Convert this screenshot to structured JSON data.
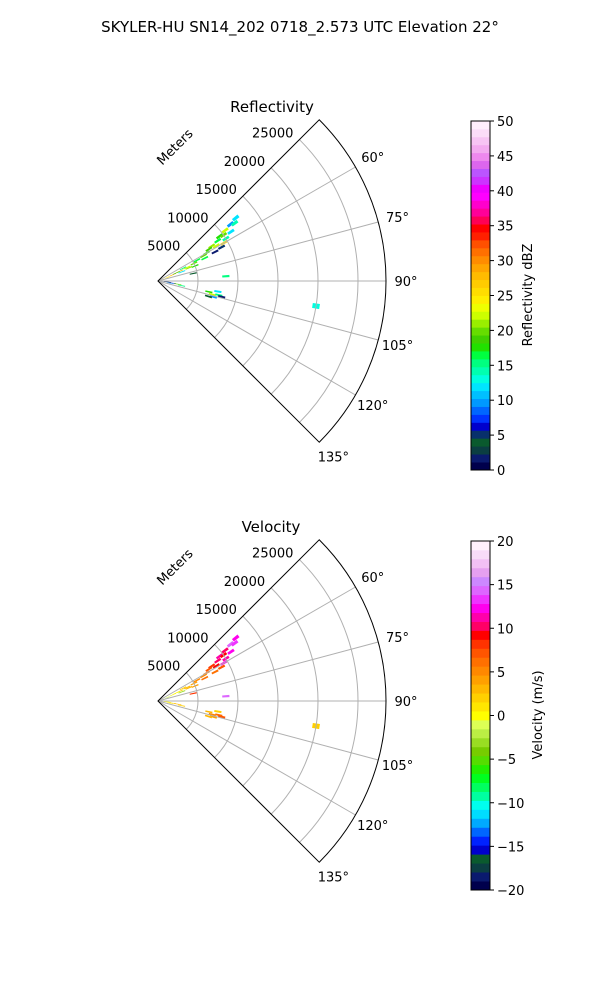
{
  "figure_title": "SKYLER-HU  SN14_202  0718_2.573 UTC Elevation 22°",
  "range_label": "Meters",
  "colors": {
    "grid": "#b0b0b0",
    "frame": "#000000",
    "background": "#ffffff"
  },
  "chart_data": [
    {
      "type": "polar-sector",
      "title": "Reflectivity",
      "theta_range_deg": [
        45,
        135
      ],
      "r_range_m": [
        0,
        28500
      ],
      "r_ticks": [
        5000,
        10000,
        15000,
        20000,
        25000
      ],
      "r_tick_labels": [
        "5000",
        "10000",
        "15000",
        "20000",
        "25000"
      ],
      "theta_ticks": [
        60,
        75,
        90,
        105,
        120,
        135
      ],
      "theta_tick_labels": [
        "60°",
        "75°",
        "90°",
        "105°",
        "120°",
        "135°"
      ],
      "grid": true,
      "colorbar": {
        "label": "Reflectivity dBZ",
        "min": 0,
        "max": 50,
        "ticks": [
          0,
          5,
          10,
          15,
          20,
          25,
          30,
          35,
          40,
          45,
          50
        ],
        "tick_labels": [
          "0",
          "5",
          "10",
          "15",
          "20",
          "25",
          "30",
          "35",
          "40",
          "45",
          "50"
        ],
        "colors": [
          "#00004c",
          "#0a1a6e",
          "#0b3e42",
          "#0a5a2e",
          "#08306b",
          "#0000cd",
          "#0033ff",
          "#0066ff",
          "#0099ff",
          "#00bfff",
          "#00e5ff",
          "#00ffe0",
          "#00ffb0",
          "#00ff80",
          "#00ff40",
          "#22e000",
          "#40d000",
          "#66dd00",
          "#99ee00",
          "#ccff00",
          "#eeff00",
          "#ffee00",
          "#ffdd00",
          "#ffcc00",
          "#ffbb00",
          "#ffa500",
          "#ff8c00",
          "#ff7000",
          "#ff5000",
          "#ff2000",
          "#ff0000",
          "#ff0055",
          "#ff0099",
          "#ff00cc",
          "#ff00ff",
          "#ee00ff",
          "#cc33ff",
          "#bb55ff",
          "#dd66ee",
          "#ee88ee",
          "#f3aaf0",
          "#f7c4f4",
          "#fbdcf8",
          "#ffeefc"
        ]
      },
      "gates": [
        {
          "az": 51,
          "r": 12500,
          "value": 12
        },
        {
          "az": 52,
          "r": 11500,
          "value": 10
        },
        {
          "az": 53,
          "r": 10500,
          "value": 22
        },
        {
          "az": 54,
          "r": 9500,
          "value": 18
        },
        {
          "az": 53,
          "r": 12000,
          "value": 14
        },
        {
          "az": 55,
          "r": 10000,
          "value": 20
        },
        {
          "az": 56,
          "r": 9000,
          "value": 16
        },
        {
          "az": 57,
          "r": 8000,
          "value": 21
        },
        {
          "az": 58,
          "r": 7500,
          "value": 19
        },
        {
          "az": 56,
          "r": 11000,
          "value": 12
        },
        {
          "az": 59,
          "r": 8500,
          "value": 22
        },
        {
          "az": 60,
          "r": 7000,
          "value": 18
        },
        {
          "az": 61,
          "r": 6500,
          "value": 20
        },
        {
          "az": 62,
          "r": 9000,
          "value": 5
        },
        {
          "az": 63,
          "r": 8000,
          "value": 2
        },
        {
          "az": 58,
          "r": 10000,
          "value": 14
        },
        {
          "az": 60,
          "r": 9500,
          "value": 25
        },
        {
          "az": 64,
          "r": 5000,
          "value": 20
        },
        {
          "az": 65,
          "r": 4000,
          "value": 22
        },
        {
          "az": 66,
          "r": 3000,
          "value": 28
        },
        {
          "az": 67,
          "r": 2000,
          "value": 30
        },
        {
          "az": 68,
          "r": 1500,
          "value": 26
        },
        {
          "az": 62,
          "r": 5500,
          "value": 17
        },
        {
          "az": 63,
          "r": 3500,
          "value": 15
        },
        {
          "az": 66,
          "r": 2500,
          "value": 19
        },
        {
          "az": 70,
          "r": 1000,
          "value": 24
        },
        {
          "az": 67,
          "r": 4200,
          "value": 21
        },
        {
          "az": 69,
          "r": 3200,
          "value": 12
        },
        {
          "az": 68,
          "r": 5000,
          "value": 18
        },
        {
          "az": 64,
          "r": 6500,
          "value": 16
        },
        {
          "az": 78,
          "r": 4500,
          "value": 4
        },
        {
          "az": 86,
          "r": 8500,
          "value": 15
        },
        {
          "az": 92,
          "r": 700,
          "value": 20
        },
        {
          "az": 96,
          "r": 1200,
          "value": 3
        },
        {
          "az": 98,
          "r": 1800,
          "value": 6
        },
        {
          "az": 100,
          "r": 1500,
          "value": 10
        },
        {
          "az": 99,
          "r": 2500,
          "value": 20
        },
        {
          "az": 101,
          "r": 3000,
          "value": 15
        },
        {
          "az": 95,
          "r": 1000,
          "value": 2
        },
        {
          "az": 102,
          "r": 6500,
          "value": 18
        },
        {
          "az": 104,
          "r": 7000,
          "value": 22
        },
        {
          "az": 106,
          "r": 7200,
          "value": 10
        },
        {
          "az": 103,
          "r": 7800,
          "value": 15
        },
        {
          "az": 104,
          "r": 8200,
          "value": 2
        },
        {
          "az": 100,
          "r": 7600,
          "value": 12
        },
        {
          "az": 107,
          "r": 6600,
          "value": 4
        },
        {
          "az": 99,
          "r": 20000,
          "value": 13
        }
      ]
    },
    {
      "type": "polar-sector",
      "title": "Velocity",
      "theta_range_deg": [
        45,
        135
      ],
      "r_range_m": [
        0,
        28500
      ],
      "r_ticks": [
        5000,
        10000,
        15000,
        20000,
        25000
      ],
      "r_tick_labels": [
        "5000",
        "10000",
        "15000",
        "20000",
        "25000"
      ],
      "theta_ticks": [
        60,
        75,
        90,
        105,
        120,
        135
      ],
      "theta_tick_labels": [
        "60°",
        "75°",
        "90°",
        "105°",
        "120°",
        "135°"
      ],
      "grid": true,
      "colorbar": {
        "label": "Velocity (m/s)",
        "min": -20,
        "max": 20,
        "ticks": [
          -20,
          -15,
          -10,
          -5,
          0,
          5,
          10,
          15,
          20
        ],
        "tick_labels": [
          "−20",
          "−15",
          "−10",
          "−5",
          "0",
          "5",
          "10",
          "15",
          "20"
        ],
        "colors": [
          "#00004c",
          "#0a1a6e",
          "#0b3e42",
          "#0a5a2e",
          "#0000cd",
          "#0022ff",
          "#0066ff",
          "#00aaff",
          "#00dcff",
          "#00ffee",
          "#00ffa0",
          "#00ff60",
          "#00ff20",
          "#22ee00",
          "#55dd00",
          "#77cc00",
          "#99dd22",
          "#bbee44",
          "#ddff55",
          "#ffff00",
          "#ffe600",
          "#ffd000",
          "#ffb800",
          "#ffa000",
          "#ff8800",
          "#ff7000",
          "#ff5500",
          "#ff3300",
          "#ff0000",
          "#ff0066",
          "#ff00aa",
          "#ff00ee",
          "#ee33ff",
          "#dd66ff",
          "#cc88ff",
          "#e6a0f0",
          "#f2c0f4",
          "#f8dcf8",
          "#fff0fc"
        ]
      },
      "gates": [
        {
          "az": 51,
          "r": 12500,
          "value": 12
        },
        {
          "az": 52,
          "r": 11500,
          "value": 14
        },
        {
          "az": 53,
          "r": 10500,
          "value": 10
        },
        {
          "az": 54,
          "r": 9500,
          "value": 11
        },
        {
          "az": 53,
          "r": 12000,
          "value": 13
        },
        {
          "az": 55,
          "r": 10000,
          "value": 9
        },
        {
          "az": 56,
          "r": 9000,
          "value": 10
        },
        {
          "az": 57,
          "r": 8000,
          "value": 8
        },
        {
          "az": 58,
          "r": 7500,
          "value": 7
        },
        {
          "az": 56,
          "r": 11000,
          "value": 12
        },
        {
          "az": 59,
          "r": 8500,
          "value": 9
        },
        {
          "az": 60,
          "r": 7000,
          "value": 6
        },
        {
          "az": 61,
          "r": 6500,
          "value": 5
        },
        {
          "az": 62,
          "r": 9000,
          "value": 7
        },
        {
          "az": 63,
          "r": 8000,
          "value": 6
        },
        {
          "az": 58,
          "r": 10000,
          "value": 11
        },
        {
          "az": 60,
          "r": 9500,
          "value": 12
        },
        {
          "az": 64,
          "r": 5000,
          "value": 4
        },
        {
          "az": 65,
          "r": 4000,
          "value": 3
        },
        {
          "az": 66,
          "r": 3000,
          "value": 2
        },
        {
          "az": 67,
          "r": 2000,
          "value": 1
        },
        {
          "az": 68,
          "r": 1500,
          "value": -1
        },
        {
          "az": 62,
          "r": 5500,
          "value": 5
        },
        {
          "az": 63,
          "r": 3500,
          "value": 2
        },
        {
          "az": 66,
          "r": 2500,
          "value": 0
        },
        {
          "az": 70,
          "r": 1000,
          "value": -2
        },
        {
          "az": 67,
          "r": 4200,
          "value": 3
        },
        {
          "az": 69,
          "r": 3200,
          "value": -3
        },
        {
          "az": 68,
          "r": 5000,
          "value": 4
        },
        {
          "az": 64,
          "r": 6500,
          "value": 6
        },
        {
          "az": 78,
          "r": 4500,
          "value": 8
        },
        {
          "az": 86,
          "r": 8500,
          "value": 14
        },
        {
          "az": 92,
          "r": 700,
          "value": 1
        },
        {
          "az": 96,
          "r": 1200,
          "value": 0
        },
        {
          "az": 98,
          "r": 1800,
          "value": 2
        },
        {
          "az": 100,
          "r": 1500,
          "value": 1
        },
        {
          "az": 99,
          "r": 2500,
          "value": 3
        },
        {
          "az": 101,
          "r": 3000,
          "value": 2
        },
        {
          "az": 95,
          "r": 1000,
          "value": 0
        },
        {
          "az": 102,
          "r": 6500,
          "value": 3
        },
        {
          "az": 104,
          "r": 7000,
          "value": 5
        },
        {
          "az": 106,
          "r": 7200,
          "value": 4
        },
        {
          "az": 103,
          "r": 7800,
          "value": 6
        },
        {
          "az": 104,
          "r": 8200,
          "value": 7
        },
        {
          "az": 100,
          "r": 7600,
          "value": 2
        },
        {
          "az": 107,
          "r": 6600,
          "value": 3
        },
        {
          "az": 99,
          "r": 20000,
          "value": 2
        }
      ]
    }
  ]
}
